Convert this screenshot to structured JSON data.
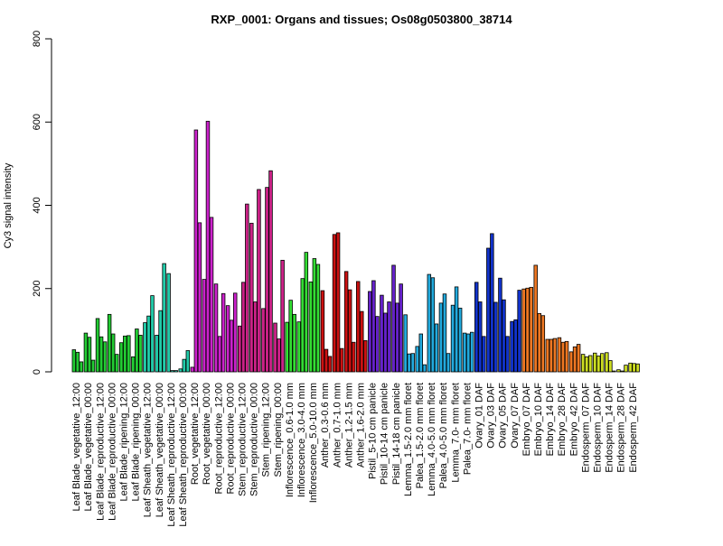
{
  "chart_data": {
    "type": "bar",
    "title": "RXP_0001: Organs and tissues; Os08g0503800_38714",
    "ylabel": "Cy3 signal intensity",
    "xlabel": "",
    "ylim": [
      0,
      800
    ],
    "yticks": [
      0,
      200,
      400,
      600,
      800
    ],
    "grid": false,
    "legend": "none",
    "categories": [
      "Leaf Blade_vegetative_12:00",
      "Leaf Blade_vegetative_00:00",
      "Leaf Blade_reproductive_12:00",
      "Leaf Blade_reproductive_00:00",
      "Leaf Blade_ripening_12:00",
      "Leaf Blade_ripening_00:00",
      "Leaf Sheath_vegetative_12:00",
      "Leaf Sheath_vegetative_00:00",
      "Leaf Sheath_reproductive_12:00",
      "Leaf Sheath_reproductive_00:00",
      "Root_vegetative_12:00",
      "Root_vegetative_00:00",
      "Root_reproductive_12:00",
      "Root_reproductive_00:00",
      "Stem_reproductive_12:00",
      "Stem_reproductive_00:00",
      "Stem_ripening_12:00",
      "Stem_ripening_00:00",
      "Inflorescence_0.6-1.0 mm",
      "Inflorescence_3.0-4.0 mm",
      "Inflorescence_5.0-10.0 mm",
      "Anther_0.3-0.6 mm",
      "Anther_0.7-1.0 mm",
      "Anther_1.2-1.5 mm",
      "Anther_1.6-2.0 mm",
      "Pistil_5-10 cm panicle",
      "Pistil_10-14 cm panicle",
      "Pistil_14-18 cm panicle",
      "Lemma_1.5-2.0 mm floret",
      "Palea_1.5-2.0 mm floret",
      "Lemma_4.0-5.0 mm floret",
      "Palea_4.0-5.0 mm floret",
      "Lemma_7.0- mm floret",
      "Palea_7.0- mm floret",
      "Ovary_01 DAF",
      "Ovary_03 DAF",
      "Ovary_05 DAF",
      "Ovary_07 DAF",
      "Embryo_07 DAF",
      "Embryo_10 DAF",
      "Embryo_14 DAF",
      "Embryo_28 DAF",
      "Embryo_42 DAF",
      "Endosperm_07 DAF",
      "Endosperm_10 DAF",
      "Endosperm_14 DAF",
      "Endosperm_28 DAF",
      "Endosperm_42 DAF"
    ],
    "values": [
      [
        53,
        47,
        24
      ],
      [
        93,
        83,
        28
      ],
      [
        128,
        84,
        72
      ],
      [
        138,
        91,
        42
      ],
      [
        70,
        86,
        87
      ],
      [
        36,
        103,
        88
      ],
      [
        118,
        134,
        183
      ],
      [
        88,
        147,
        260
      ],
      [
        236,
        3,
        3
      ],
      [
        7,
        30,
        51
      ],
      [
        11,
        581,
        358
      ],
      [
        222,
        602,
        371
      ],
      [
        211,
        85,
        188
      ],
      [
        159,
        124,
        189
      ],
      [
        110,
        215,
        403
      ],
      [
        357,
        168,
        438
      ],
      [
        152,
        443,
        483
      ],
      [
        117,
        79,
        268
      ],
      [
        119,
        172,
        138
      ],
      [
        120,
        224,
        287
      ],
      [
        216,
        272,
        258
      ],
      [
        195,
        54,
        37
      ],
      [
        330,
        334,
        56
      ],
      [
        241,
        197,
        71
      ],
      [
        217,
        145,
        75
      ],
      [
        193,
        219,
        133
      ],
      [
        184,
        141,
        168
      ],
      [
        256,
        165,
        211
      ],
      [
        137,
        43,
        44
      ],
      [
        61,
        91,
        17
      ],
      [
        234,
        226,
        115
      ],
      [
        165,
        187,
        44
      ],
      [
        160,
        204,
        153
      ],
      [
        93,
        91,
        95
      ],
      [
        215,
        168,
        85
      ],
      [
        297,
        332,
        167
      ],
      [
        225,
        173,
        85
      ],
      [
        121,
        125,
        196
      ],
      [
        199,
        201,
        203
      ],
      [
        256,
        140,
        135
      ],
      [
        78,
        78,
        80
      ],
      [
        82,
        71,
        73
      ],
      [
        48,
        60,
        66
      ],
      [
        42,
        36,
        39
      ],
      [
        45,
        38,
        44
      ],
      [
        46,
        27,
        2
      ],
      [
        5,
        2,
        16
      ],
      [
        21,
        20,
        19
      ]
    ],
    "colors": {
      "Leaf Blade": "#22cc33",
      "Leaf Sheath": "#22ccaa",
      "Root": "#cc22cc",
      "Stem": "#cc2288",
      "Inflorescence": "#33dd33",
      "Anther": "#cc1111",
      "Pistil": "#6622cc",
      "Lemma": "#22aadd",
      "Palea": "#22aadd",
      "Ovary": "#1133cc",
      "Embryo": "#ee7722",
      "Endosperm": "#ccdd22"
    },
    "bar_outline_color": "#000000"
  }
}
